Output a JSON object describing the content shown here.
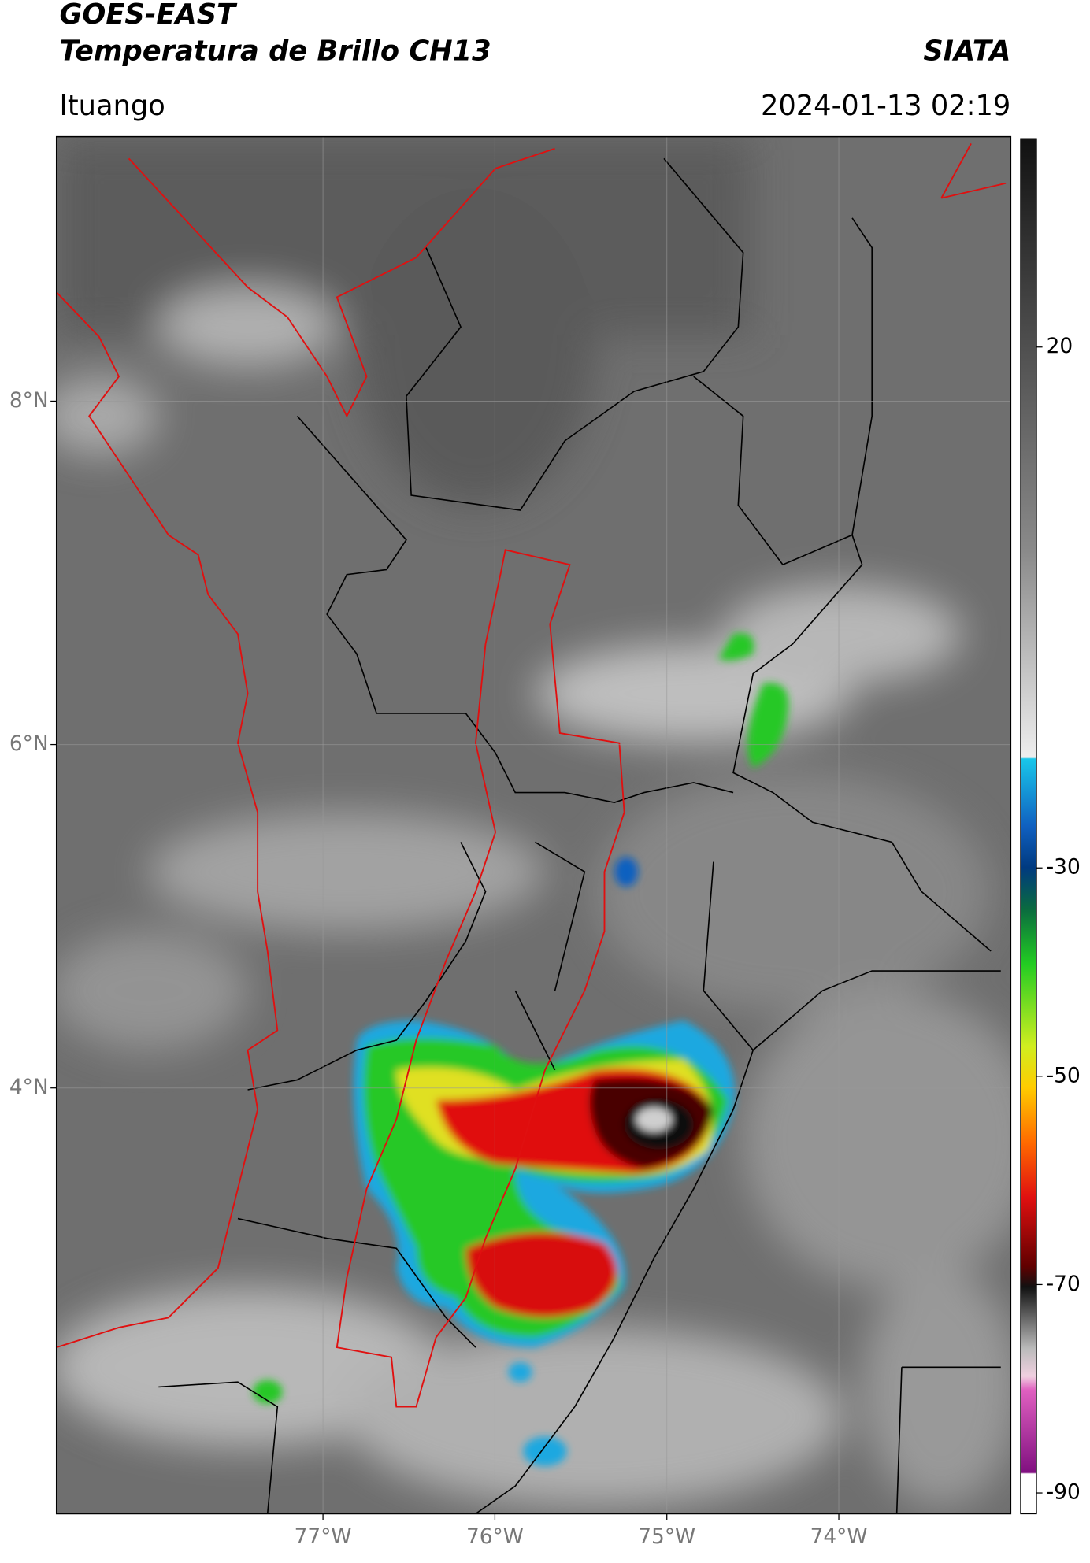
{
  "header": {
    "title": "GOES-EAST",
    "subtitle": "Temperatura de Brillo CH13",
    "org": "SIATA",
    "location": "Ituango",
    "datetime": "2024-01-13 02:19"
  },
  "map": {
    "lat_lim": [
      1.52,
      9.54
    ],
    "lon_lim": [
      -78.55,
      -73.0
    ],
    "lat_ticks": [
      {
        "value": 8,
        "label": "8°N"
      },
      {
        "value": 6,
        "label": "6°N"
      },
      {
        "value": 4,
        "label": "4°N"
      }
    ],
    "lon_ticks": [
      {
        "value": -77,
        "label": "77°W"
      },
      {
        "value": -76,
        "label": "76°W"
      },
      {
        "value": -75,
        "label": "75°W"
      },
      {
        "value": -74,
        "label": "74°W"
      }
    ]
  },
  "colorbar": {
    "lim": [
      -92,
      40
    ],
    "ticks": [
      20,
      -30,
      -50,
      -70,
      -90
    ]
  }
}
